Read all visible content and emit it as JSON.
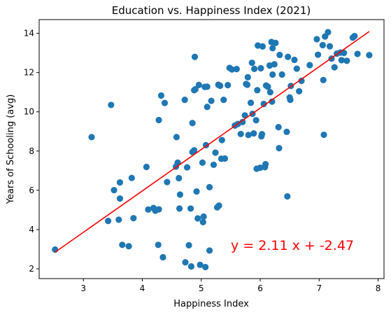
{
  "chart_data": {
    "type": "scatter",
    "title": "Education vs. Happiness Index (2021)",
    "xlabel": "Happiness Index",
    "ylabel": "Years of Schooling (avg)",
    "xlim": [
      2.25,
      8.1
    ],
    "ylim": [
      1.5,
      14.7
    ],
    "xticks": [
      3,
      4,
      5,
      6,
      7,
      8
    ],
    "yticks": [
      2,
      4,
      6,
      8,
      10,
      12,
      14
    ],
    "grid": false,
    "marker_color": "#1f77b4",
    "regression": {
      "slope": 2.11,
      "intercept": -2.47,
      "x_range": [
        2.52,
        7.85
      ],
      "color": "#ff0000",
      "equation_label": "y = 2.11 x + -2.47"
    },
    "points": [
      [
        2.52,
        2.98
      ],
      [
        3.14,
        8.71
      ],
      [
        3.42,
        4.44
      ],
      [
        3.47,
        10.35
      ],
      [
        3.52,
        6.01
      ],
      [
        3.6,
        4.5
      ],
      [
        3.62,
        6.4
      ],
      [
        3.62,
        5.58
      ],
      [
        3.66,
        3.22
      ],
      [
        3.77,
        3.15
      ],
      [
        3.82,
        6.63
      ],
      [
        3.85,
        4.58
      ],
      [
        4.07,
        7.19
      ],
      [
        4.1,
        5.02
      ],
      [
        4.19,
        5.1
      ],
      [
        4.22,
        4.96
      ],
      [
        4.27,
        3.22
      ],
      [
        4.28,
        5.03
      ],
      [
        4.28,
        9.58
      ],
      [
        4.32,
        10.83
      ],
      [
        4.35,
        2.59
      ],
      [
        4.38,
        10.45
      ],
      [
        4.42,
        6.42
      ],
      [
        4.57,
        7.21
      ],
      [
        4.58,
        8.71
      ],
      [
        4.6,
        7.41
      ],
      [
        4.62,
        6.62
      ],
      [
        4.63,
        5.07
      ],
      [
        4.64,
        5.78
      ],
      [
        4.72,
        10.61
      ],
      [
        4.73,
        2.33
      ],
      [
        4.76,
        7.17
      ],
      [
        4.79,
        3.2
      ],
      [
        4.82,
        5.07
      ],
      [
        4.83,
        2.12
      ],
      [
        4.85,
        7.95
      ],
      [
        4.85,
        9.43
      ],
      [
        4.88,
        8.04
      ],
      [
        4.88,
        11.1
      ],
      [
        4.89,
        12.8
      ],
      [
        4.9,
        11.15
      ],
      [
        4.92,
        5.94
      ],
      [
        4.94,
        4.57
      ],
      [
        4.96,
        11.37
      ],
      [
        4.98,
        2.2
      ],
      [
        5.02,
        7.41
      ],
      [
        5.03,
        4.38
      ],
      [
        5.04,
        4.66
      ],
      [
        5.06,
        11.27
      ],
      [
        5.07,
        2.09
      ],
      [
        5.08,
        8.3
      ],
      [
        5.1,
        11.28
      ],
      [
        5.1,
        10.25
      ],
      [
        5.14,
        6.16
      ],
      [
        5.14,
        2.93
      ],
      [
        5.17,
        10.56
      ],
      [
        5.21,
        7.3
      ],
      [
        5.24,
        7.92
      ],
      [
        5.27,
        5.13
      ],
      [
        5.29,
        11.38
      ],
      [
        5.3,
        5.22
      ],
      [
        5.32,
        11.33
      ],
      [
        5.34,
        7.61
      ],
      [
        5.35,
        8.56
      ],
      [
        5.38,
        10.61
      ],
      [
        5.4,
        7.62
      ],
      [
        5.45,
        11.36
      ],
      [
        5.48,
        12.24
      ],
      [
        5.52,
        12.16
      ],
      [
        5.57,
        9.3
      ],
      [
        5.6,
        12.18
      ],
      [
        5.62,
        9.38
      ],
      [
        5.67,
        8.87
      ],
      [
        5.7,
        9.48
      ],
      [
        5.74,
        9.82
      ],
      [
        5.76,
        11.42
      ],
      [
        5.78,
        11.38
      ],
      [
        5.79,
        11.76
      ],
      [
        5.8,
        8.82
      ],
      [
        5.84,
        10.46
      ],
      [
        5.86,
        12.5
      ],
      [
        5.87,
        9.9
      ],
      [
        5.89,
        8.9
      ],
      [
        5.9,
        12.19
      ],
      [
        5.93,
        9.57
      ],
      [
        5.94,
        7.1
      ],
      [
        5.95,
        11.1
      ],
      [
        5.96,
        13.38
      ],
      [
        6.0,
        7.15
      ],
      [
        6.01,
        12.22
      ],
      [
        6.02,
        8.75
      ],
      [
        6.03,
        8.86
      ],
      [
        6.04,
        13.33
      ],
      [
        6.06,
        10.4
      ],
      [
        6.08,
        7.18
      ],
      [
        6.09,
        7.33
      ],
      [
        6.1,
        11.34
      ],
      [
        6.13,
        11.28
      ],
      [
        6.16,
        12.36
      ],
      [
        6.17,
        11.0
      ],
      [
        6.19,
        13.56
      ],
      [
        6.2,
        10.52
      ],
      [
        6.21,
        11.9
      ],
      [
        6.21,
        13.24
      ],
      [
        6.24,
        12.42
      ],
      [
        6.26,
        13.51
      ],
      [
        6.31,
        9.22
      ],
      [
        6.32,
        8.15
      ],
      [
        6.33,
        12.9
      ],
      [
        6.37,
        11.9
      ],
      [
        6.45,
        8.98
      ],
      [
        6.46,
        5.69
      ],
      [
        6.47,
        12.8
      ],
      [
        6.5,
        10.73
      ],
      [
        6.51,
        10.61
      ],
      [
        6.52,
        11.32
      ],
      [
        6.58,
        12.65
      ],
      [
        6.62,
        12.2
      ],
      [
        6.66,
        11.05
      ],
      [
        6.7,
        11.58
      ],
      [
        6.84,
        12.38
      ],
      [
        6.96,
        13.7
      ],
      [
        6.98,
        12.91
      ],
      [
        7.06,
        13.4
      ],
      [
        7.07,
        11.62
      ],
      [
        7.08,
        8.83
      ],
      [
        7.1,
        13.84
      ],
      [
        7.15,
        14.06
      ],
      [
        7.18,
        13.34
      ],
      [
        7.21,
        12.71
      ],
      [
        7.26,
        12.27
      ],
      [
        7.3,
        12.97
      ],
      [
        7.36,
        13.02
      ],
      [
        7.38,
        12.63
      ],
      [
        7.42,
        13.0
      ],
      [
        7.47,
        12.6
      ],
      [
        7.57,
        13.78
      ],
      [
        7.6,
        13.86
      ],
      [
        7.65,
        12.95
      ],
      [
        7.85,
        12.89
      ]
    ]
  }
}
